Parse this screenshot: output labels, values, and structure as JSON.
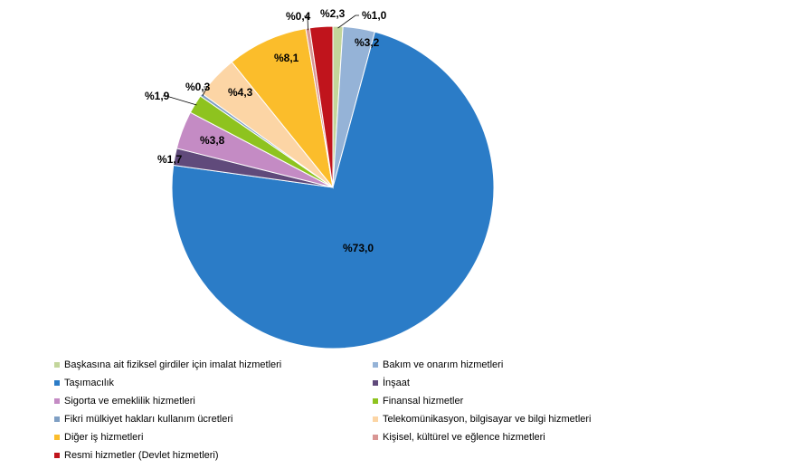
{
  "chart_data": {
    "type": "pie",
    "title": "",
    "categories": [
      "Başkasına ait fiziksel girdiler için imalat hizmetleri",
      "Bakım ve onarım hizmetleri",
      "Taşımacılık",
      "İnşaat",
      "Sigorta ve emeklilik hizmetleri",
      "Finansal hizmetler",
      "Fikri mülkiyet hakları kullanım ücretleri",
      "Telekomünikasyon, bilgisayar ve bilgi hizmetleri",
      "Diğer iş hizmetleri",
      "Kişisel, kültürel ve eğlence hizmetleri",
      "Resmi hizmetler (Devlet hizmetleri)"
    ],
    "values": [
      1.0,
      3.2,
      73.0,
      1.7,
      3.8,
      1.9,
      0.3,
      4.3,
      8.1,
      0.4,
      2.3
    ],
    "data_labels": [
      "%1,0",
      "%3,2",
      "%73,0",
      "%1,7",
      "%3,8",
      "%1,9",
      "%0,3",
      "%4,3",
      "%8,1",
      "%0,4",
      "%2,3"
    ],
    "colors": [
      "#c3d69b",
      "#95b3d7",
      "#2b7cc7",
      "#604a7b",
      "#c48bc4",
      "#8ec31f",
      "#7f9fc4",
      "#fcd5a5",
      "#fbbd2b",
      "#d99694",
      "#c0141c"
    ],
    "legend_position": "bottom",
    "start_angle": "12 o'clock",
    "direction": "clockwise"
  }
}
